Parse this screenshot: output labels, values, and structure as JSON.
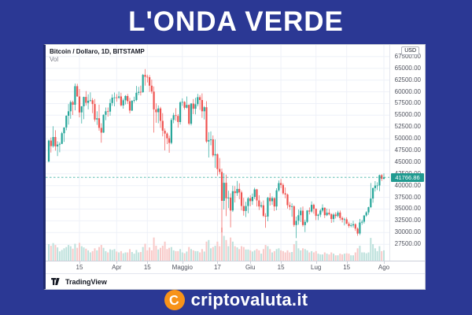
{
  "page": {
    "title": "L'ONDA VERDE"
  },
  "chart": {
    "legend": {
      "symbol": "Bitcoin / Dollaro, 1D, BITSTAMP",
      "indicator": "Vol"
    },
    "axis_currency": "USD",
    "current_price": "41766.86",
    "attribution": "TradingView"
  },
  "watermark": {
    "brand": "criptovaluta.it",
    "coin_letter": "C"
  },
  "colors": {
    "background": "#2b3894",
    "panel_border_left": "#1f2a6e",
    "up": "#26a69a",
    "down": "#ef5350",
    "volume_up": "#bde1dc",
    "volume_down": "#f8c9c8",
    "grid": "#eef1f8",
    "price_line": "#26a69a",
    "badge_bg": "#209a90",
    "axis_text": "#50535e",
    "coin": "#f7931a"
  },
  "chart_data": {
    "type": "candlestick",
    "symbol": "Bitcoin / Dollaro",
    "interval": "1D",
    "exchange": "BITSTAMP",
    "currency": "USD",
    "legend_indicator": "Vol",
    "current_price": 41766.86,
    "y_axis": {
      "min": 24000,
      "max": 70000
    },
    "y_ticks": [
      67500,
      65000,
      62500,
      60000,
      57500,
      55000,
      52500,
      50000,
      47500,
      45000,
      42500,
      40000,
      37500,
      35000,
      32500,
      30000,
      27500
    ],
    "x_ticks": [
      {
        "i": 14,
        "label": "15"
      },
      {
        "i": 31,
        "label": "Apr"
      },
      {
        "i": 45,
        "label": "15"
      },
      {
        "i": 61,
        "label": "Maggio"
      },
      {
        "i": 77,
        "label": "17"
      },
      {
        "i": 92,
        "label": "Giu"
      },
      {
        "i": 106,
        "label": "15"
      },
      {
        "i": 122,
        "label": "Lug"
      },
      {
        "i": 136,
        "label": "15"
      },
      {
        "i": 153,
        "label": "Ago"
      }
    ],
    "candles": [
      [
        45150,
        49800,
        44950,
        49600,
        80
      ],
      [
        49600,
        50250,
        47050,
        48400,
        72
      ],
      [
        48400,
        52650,
        48100,
        50350,
        85
      ],
      [
        50350,
        51800,
        47450,
        48370,
        76
      ],
      [
        48370,
        49450,
        46300,
        48750,
        64
      ],
      [
        48750,
        49250,
        47100,
        48900,
        45
      ],
      [
        48900,
        51450,
        48850,
        51170,
        52
      ],
      [
        51170,
        52450,
        49300,
        52375,
        60
      ],
      [
        52375,
        54950,
        51800,
        54900,
        66
      ],
      [
        54900,
        57400,
        53000,
        55850,
        76
      ],
      [
        55850,
        58150,
        54250,
        57800,
        70
      ],
      [
        57800,
        58100,
        55050,
        57240,
        58
      ],
      [
        57240,
        61750,
        56050,
        61200,
        82
      ],
      [
        61200,
        61700,
        58950,
        59000,
        62
      ],
      [
        59000,
        60600,
        54550,
        55600,
        86
      ],
      [
        55600,
        56950,
        53250,
        56900,
        70
      ],
      [
        56900,
        58950,
        54150,
        58900,
        64
      ],
      [
        58900,
        60150,
        57050,
        57650,
        58
      ],
      [
        57650,
        59450,
        56250,
        58100,
        50
      ],
      [
        58100,
        59900,
        57850,
        58200,
        40
      ],
      [
        58200,
        58650,
        55450,
        57400,
        46
      ],
      [
        57400,
        58450,
        53650,
        54100,
        60
      ],
      [
        54100,
        55850,
        52950,
        54350,
        50
      ],
      [
        54350,
        57250,
        51700,
        52300,
        66
      ],
      [
        52300,
        53300,
        49150,
        51300,
        76
      ],
      [
        51300,
        55200,
        51250,
        55100,
        62
      ],
      [
        55100,
        56650,
        53950,
        55850,
        46
      ],
      [
        55850,
        56650,
        54700,
        55780,
        40
      ],
      [
        55780,
        58450,
        54900,
        57600,
        55
      ],
      [
        57600,
        59450,
        57000,
        58750,
        52
      ],
      [
        58750,
        59850,
        56900,
        58800,
        56
      ],
      [
        58800,
        59500,
        57900,
        58750,
        44
      ],
      [
        58750,
        60050,
        58450,
        59000,
        40
      ],
      [
        59000,
        59800,
        56850,
        57100,
        46
      ],
      [
        57100,
        58550,
        56400,
        58200,
        36
      ],
      [
        58200,
        59300,
        57300,
        59100,
        40
      ],
      [
        59100,
        59550,
        57400,
        58000,
        40
      ],
      [
        58000,
        58700,
        55400,
        56000,
        56
      ],
      [
        56000,
        58200,
        55900,
        58100,
        42
      ],
      [
        58100,
        58950,
        57700,
        58250,
        34
      ],
      [
        58250,
        61250,
        58000,
        59800,
        52
      ],
      [
        59800,
        61050,
        59300,
        60000,
        40
      ],
      [
        60000,
        61300,
        59200,
        59900,
        42
      ],
      [
        59900,
        63800,
        59800,
        63600,
        66
      ],
      [
        63600,
        64850,
        61300,
        63200,
        82
      ],
      [
        63200,
        63650,
        62000,
        63100,
        50
      ],
      [
        63100,
        63550,
        60000,
        61300,
        64
      ],
      [
        61300,
        62600,
        59600,
        60050,
        50
      ],
      [
        60050,
        61150,
        51300,
        56250,
        112
      ],
      [
        56250,
        57550,
        53400,
        55650,
        72
      ],
      [
        55650,
        57100,
        53300,
        56450,
        54
      ],
      [
        56450,
        56800,
        52300,
        53800,
        62
      ],
      [
        53800,
        55450,
        50500,
        51700,
        72
      ],
      [
        51700,
        52200,
        47500,
        51100,
        92
      ],
      [
        51100,
        51350,
        48850,
        50100,
        56
      ],
      [
        50100,
        50650,
        47000,
        49100,
        62
      ],
      [
        49100,
        54400,
        48800,
        54000,
        66
      ],
      [
        54000,
        55500,
        53300,
        55000,
        50
      ],
      [
        55000,
        56500,
        53850,
        54850,
        46
      ],
      [
        54850,
        55250,
        52350,
        53550,
        46
      ],
      [
        53550,
        58000,
        53000,
        57750,
        56
      ],
      [
        57750,
        58600,
        57000,
        57850,
        40
      ],
      [
        57850,
        58000,
        56200,
        56600,
        36
      ],
      [
        56600,
        59000,
        56450,
        57200,
        44
      ],
      [
        57200,
        57300,
        52900,
        53200,
        66
      ],
      [
        53200,
        57600,
        52850,
        57500,
        56
      ],
      [
        57500,
        58450,
        55250,
        56400,
        50
      ],
      [
        56400,
        58700,
        55200,
        57350,
        46
      ],
      [
        57350,
        59550,
        56900,
        58850,
        46
      ],
      [
        58850,
        59300,
        56150,
        58250,
        40
      ],
      [
        58250,
        59650,
        54450,
        55850,
        56
      ],
      [
        55850,
        56950,
        54100,
        56700,
        44
      ],
      [
        56700,
        58000,
        49100,
        49400,
        92
      ],
      [
        49400,
        51400,
        46000,
        49700,
        100
      ],
      [
        49700,
        51550,
        48600,
        49850,
        60
      ],
      [
        49850,
        50700,
        46100,
        46450,
        66
      ],
      [
        46450,
        49850,
        43800,
        46700,
        72
      ],
      [
        46700,
        46850,
        42100,
        43550,
        92
      ],
      [
        43550,
        45900,
        42400,
        42900,
        70
      ],
      [
        42900,
        43650,
        30000,
        36750,
        160
      ],
      [
        36750,
        42650,
        34950,
        40600,
        120
      ],
      [
        40600,
        42350,
        33500,
        37300,
        100
      ],
      [
        37300,
        38900,
        35200,
        37450,
        70
      ],
      [
        37450,
        38350,
        31100,
        34700,
        112
      ],
      [
        34700,
        40000,
        34400,
        38800,
        92
      ],
      [
        38800,
        39900,
        36400,
        38400,
        70
      ],
      [
        38400,
        41000,
        37800,
        39300,
        64
      ],
      [
        39300,
        40500,
        37100,
        38550,
        56
      ],
      [
        38550,
        38950,
        34700,
        35650,
        70
      ],
      [
        35650,
        37400,
        33600,
        34600,
        66
      ],
      [
        34600,
        36550,
        33300,
        35650,
        54
      ],
      [
        35650,
        37550,
        34100,
        37300,
        54
      ],
      [
        37300,
        37950,
        35600,
        36700,
        50
      ],
      [
        36700,
        38300,
        35900,
        37600,
        44
      ],
      [
        37600,
        39550,
        37150,
        39200,
        50
      ],
      [
        39200,
        39300,
        35550,
        36850,
        56
      ],
      [
        36850,
        37950,
        34800,
        35550,
        50
      ],
      [
        35550,
        36500,
        35200,
        35800,
        34
      ],
      [
        35800,
        36850,
        33300,
        33550,
        56
      ],
      [
        33550,
        34100,
        31000,
        33400,
        76
      ],
      [
        33400,
        37600,
        32400,
        37400,
        70
      ],
      [
        37400,
        38400,
        35750,
        36680,
        56
      ],
      [
        36680,
        37700,
        35900,
        37330,
        40
      ],
      [
        37330,
        37500,
        34600,
        35550,
        46
      ],
      [
        35550,
        39450,
        34750,
        39000,
        56
      ],
      [
        39000,
        41100,
        38700,
        40540,
        60
      ],
      [
        40540,
        41400,
        39500,
        40150,
        50
      ],
      [
        40150,
        40500,
        38050,
        38350,
        46
      ],
      [
        38350,
        39600,
        37300,
        38100,
        40
      ],
      [
        38100,
        38300,
        35100,
        35830,
        50
      ],
      [
        35830,
        36500,
        34800,
        35470,
        40
      ],
      [
        35470,
        36200,
        33350,
        35600,
        42
      ],
      [
        35600,
        35800,
        31200,
        31600,
        80
      ],
      [
        31600,
        33400,
        28800,
        32500,
        96
      ],
      [
        32500,
        34900,
        31650,
        33680,
        60
      ],
      [
        33680,
        35350,
        32250,
        34660,
        50
      ],
      [
        34660,
        35550,
        31250,
        31590,
        60
      ],
      [
        31590,
        32750,
        30100,
        32280,
        56
      ],
      [
        32280,
        34800,
        32000,
        34700,
        50
      ],
      [
        34700,
        35350,
        33850,
        34480,
        40
      ],
      [
        34480,
        36650,
        34200,
        35910,
        46
      ],
      [
        35910,
        36150,
        34000,
        35050,
        40
      ],
      [
        35050,
        35150,
        32650,
        33550,
        46
      ],
      [
        33550,
        34000,
        32650,
        33800,
        34
      ],
      [
        33800,
        35000,
        33300,
        34690,
        30
      ],
      [
        34690,
        36000,
        34300,
        35290,
        30
      ],
      [
        35290,
        35350,
        33100,
        33700,
        40
      ],
      [
        33700,
        35100,
        33500,
        34230,
        34
      ],
      [
        34230,
        35000,
        33650,
        33880,
        30
      ],
      [
        33880,
        34100,
        32050,
        32880,
        40
      ],
      [
        32880,
        34150,
        32200,
        33820,
        34
      ],
      [
        33820,
        34300,
        33000,
        33520,
        26
      ],
      [
        33520,
        34650,
        33250,
        34250,
        26
      ],
      [
        34250,
        34700,
        32600,
        33100,
        34
      ],
      [
        33100,
        33400,
        32150,
        32730,
        30
      ],
      [
        32730,
        33150,
        31500,
        32820,
        34
      ],
      [
        32820,
        33250,
        31800,
        31880,
        36
      ],
      [
        31880,
        32300,
        31000,
        31400,
        34
      ],
      [
        31400,
        32000,
        31100,
        31530,
        26
      ],
      [
        31530,
        32500,
        31050,
        31780,
        26
      ],
      [
        31780,
        31950,
        30350,
        30840,
        40
      ],
      [
        30840,
        31100,
        29300,
        29790,
        60
      ],
      [
        29790,
        32900,
        29450,
        32140,
        72
      ],
      [
        32140,
        32700,
        31650,
        32300,
        40
      ],
      [
        32300,
        33700,
        31900,
        33630,
        40
      ],
      [
        33630,
        34550,
        33350,
        34290,
        36
      ],
      [
        34290,
        35500,
        33800,
        35400,
        40
      ],
      [
        35400,
        40550,
        35200,
        37240,
        110
      ],
      [
        37240,
        39600,
        36350,
        39460,
        80
      ],
      [
        39460,
        40950,
        38750,
        40020,
        60
      ],
      [
        40020,
        40700,
        39050,
        40030,
        46
      ],
      [
        40030,
        42350,
        38800,
        42210,
        70
      ],
      [
        42210,
        42450,
        41000,
        41460,
        46
      ],
      [
        41460,
        42610,
        41300,
        41766.86,
        50
      ]
    ]
  }
}
